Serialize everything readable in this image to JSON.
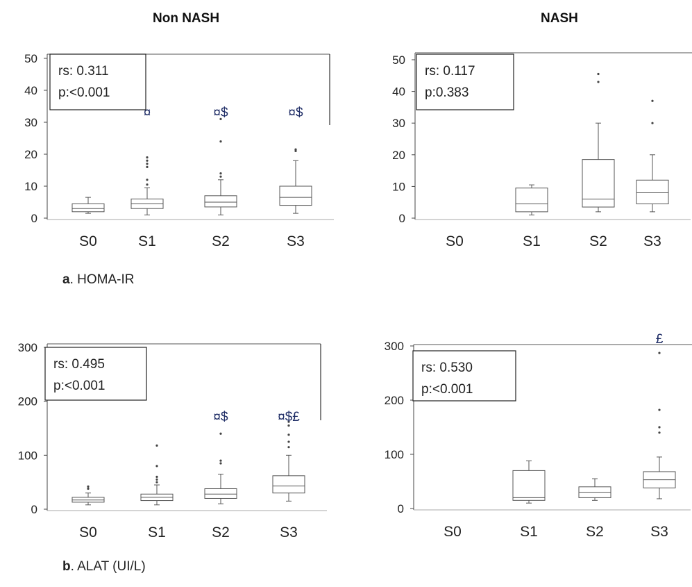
{
  "column_titles": {
    "left": "Non NASH",
    "right": "NASH"
  },
  "captions": {
    "a": {
      "letter": "a",
      "text": ". HOMA-IR"
    },
    "b": {
      "letter": "b",
      "text": ". ALAT (UI/L)"
    }
  },
  "colors": {
    "box": "#555555",
    "text": "#222222",
    "marker": "#1f2d66",
    "outlier": "#444444"
  },
  "chart_data": [
    {
      "type": "box",
      "categories": [
        "S0",
        "S1",
        "S2",
        "S3"
      ],
      "ylim": [
        0,
        50
      ],
      "yticks": [
        0,
        10,
        20,
        30,
        40,
        50
      ],
      "stats_text": [
        "rs: 0.311",
        "p:<0.001"
      ],
      "boxes": [
        {
          "category": "S0",
          "whisker_low": 1.5,
          "q1": 2,
          "median": 3,
          "q3": 4.5,
          "whisker_high": 6.5,
          "outliers": []
        },
        {
          "category": "S1",
          "whisker_low": 1,
          "q1": 3,
          "median": 4.5,
          "q3": 6,
          "whisker_high": 9.5,
          "outliers": [
            10.5,
            12,
            16,
            17,
            18,
            19
          ]
        },
        {
          "category": "S2",
          "whisker_low": 1,
          "q1": 3.5,
          "median": 5,
          "q3": 7,
          "whisker_high": 12,
          "outliers": [
            13,
            14,
            24,
            31
          ]
        },
        {
          "category": "S3",
          "whisker_low": 1.5,
          "q1": 4,
          "median": 6.5,
          "q3": 10,
          "whisker_high": 18,
          "outliers": [
            21,
            21.5
          ]
        }
      ],
      "markers": [
        {
          "category": "S1",
          "text": "¤"
        },
        {
          "category": "S2",
          "text": "¤$"
        },
        {
          "category": "S3",
          "text": "¤$"
        }
      ]
    },
    {
      "type": "box",
      "categories": [
        "S0",
        "S1",
        "S2",
        "S3"
      ],
      "ylim": [
        0,
        50
      ],
      "yticks": [
        0,
        10,
        20,
        30,
        40,
        50
      ],
      "stats_text": [
        "rs: 0.117",
        "p:0.383"
      ],
      "boxes": [
        {
          "category": "S1",
          "whisker_low": 1,
          "q1": 2,
          "median": 4.5,
          "q3": 9.5,
          "whisker_high": 10.5,
          "outliers": []
        },
        {
          "category": "S2",
          "whisker_low": 2,
          "q1": 3.5,
          "median": 6,
          "q3": 18.5,
          "whisker_high": 30,
          "outliers": [
            43,
            45.5
          ]
        },
        {
          "category": "S3",
          "whisker_low": 2,
          "q1": 4.5,
          "median": 8,
          "q3": 12,
          "whisker_high": 20,
          "outliers": [
            30,
            37
          ]
        }
      ],
      "markers": []
    },
    {
      "type": "box",
      "categories": [
        "S0",
        "S1",
        "S2",
        "S3"
      ],
      "ylim": [
        0,
        300
      ],
      "yticks": [
        0,
        100,
        200,
        300
      ],
      "stats_text": [
        "rs: 0.495",
        "p:<0.001"
      ],
      "boxes": [
        {
          "category": "S0",
          "whisker_low": 8,
          "q1": 13,
          "median": 17,
          "q3": 22,
          "whisker_high": 30,
          "outliers": [
            38,
            42
          ]
        },
        {
          "category": "S1",
          "whisker_low": 8,
          "q1": 16,
          "median": 22,
          "q3": 28,
          "whisker_high": 45,
          "outliers": [
            50,
            55,
            60,
            80,
            118
          ]
        },
        {
          "category": "S2",
          "whisker_low": 10,
          "q1": 20,
          "median": 28,
          "q3": 38,
          "whisker_high": 65,
          "outliers": [
            85,
            90,
            140
          ]
        },
        {
          "category": "S3",
          "whisker_low": 15,
          "q1": 30,
          "median": 43,
          "q3": 62,
          "whisker_high": 100,
          "outliers": [
            115,
            125,
            138,
            155,
            162
          ]
        }
      ],
      "markers": [
        {
          "category": "S2",
          "text": "¤$"
        },
        {
          "category": "S3",
          "text": "¤$£"
        }
      ]
    },
    {
      "type": "box",
      "categories": [
        "S0",
        "S1",
        "S2",
        "S3"
      ],
      "ylim": [
        0,
        300
      ],
      "yticks": [
        0,
        100,
        200,
        300
      ],
      "stats_text": [
        "rs: 0.530",
        "p:<0.001"
      ],
      "boxes": [
        {
          "category": "S1",
          "whisker_low": 10,
          "q1": 15,
          "median": 20,
          "q3": 70,
          "whisker_high": 88,
          "outliers": []
        },
        {
          "category": "S2",
          "whisker_low": 15,
          "q1": 20,
          "median": 30,
          "q3": 40,
          "whisker_high": 55,
          "outliers": []
        },
        {
          "category": "S3",
          "whisker_low": 18,
          "q1": 38,
          "median": 53,
          "q3": 68,
          "whisker_high": 95,
          "outliers": [
            140,
            150,
            182,
            287
          ]
        }
      ],
      "markers": [
        {
          "category": "S3",
          "text": "£"
        }
      ]
    }
  ]
}
